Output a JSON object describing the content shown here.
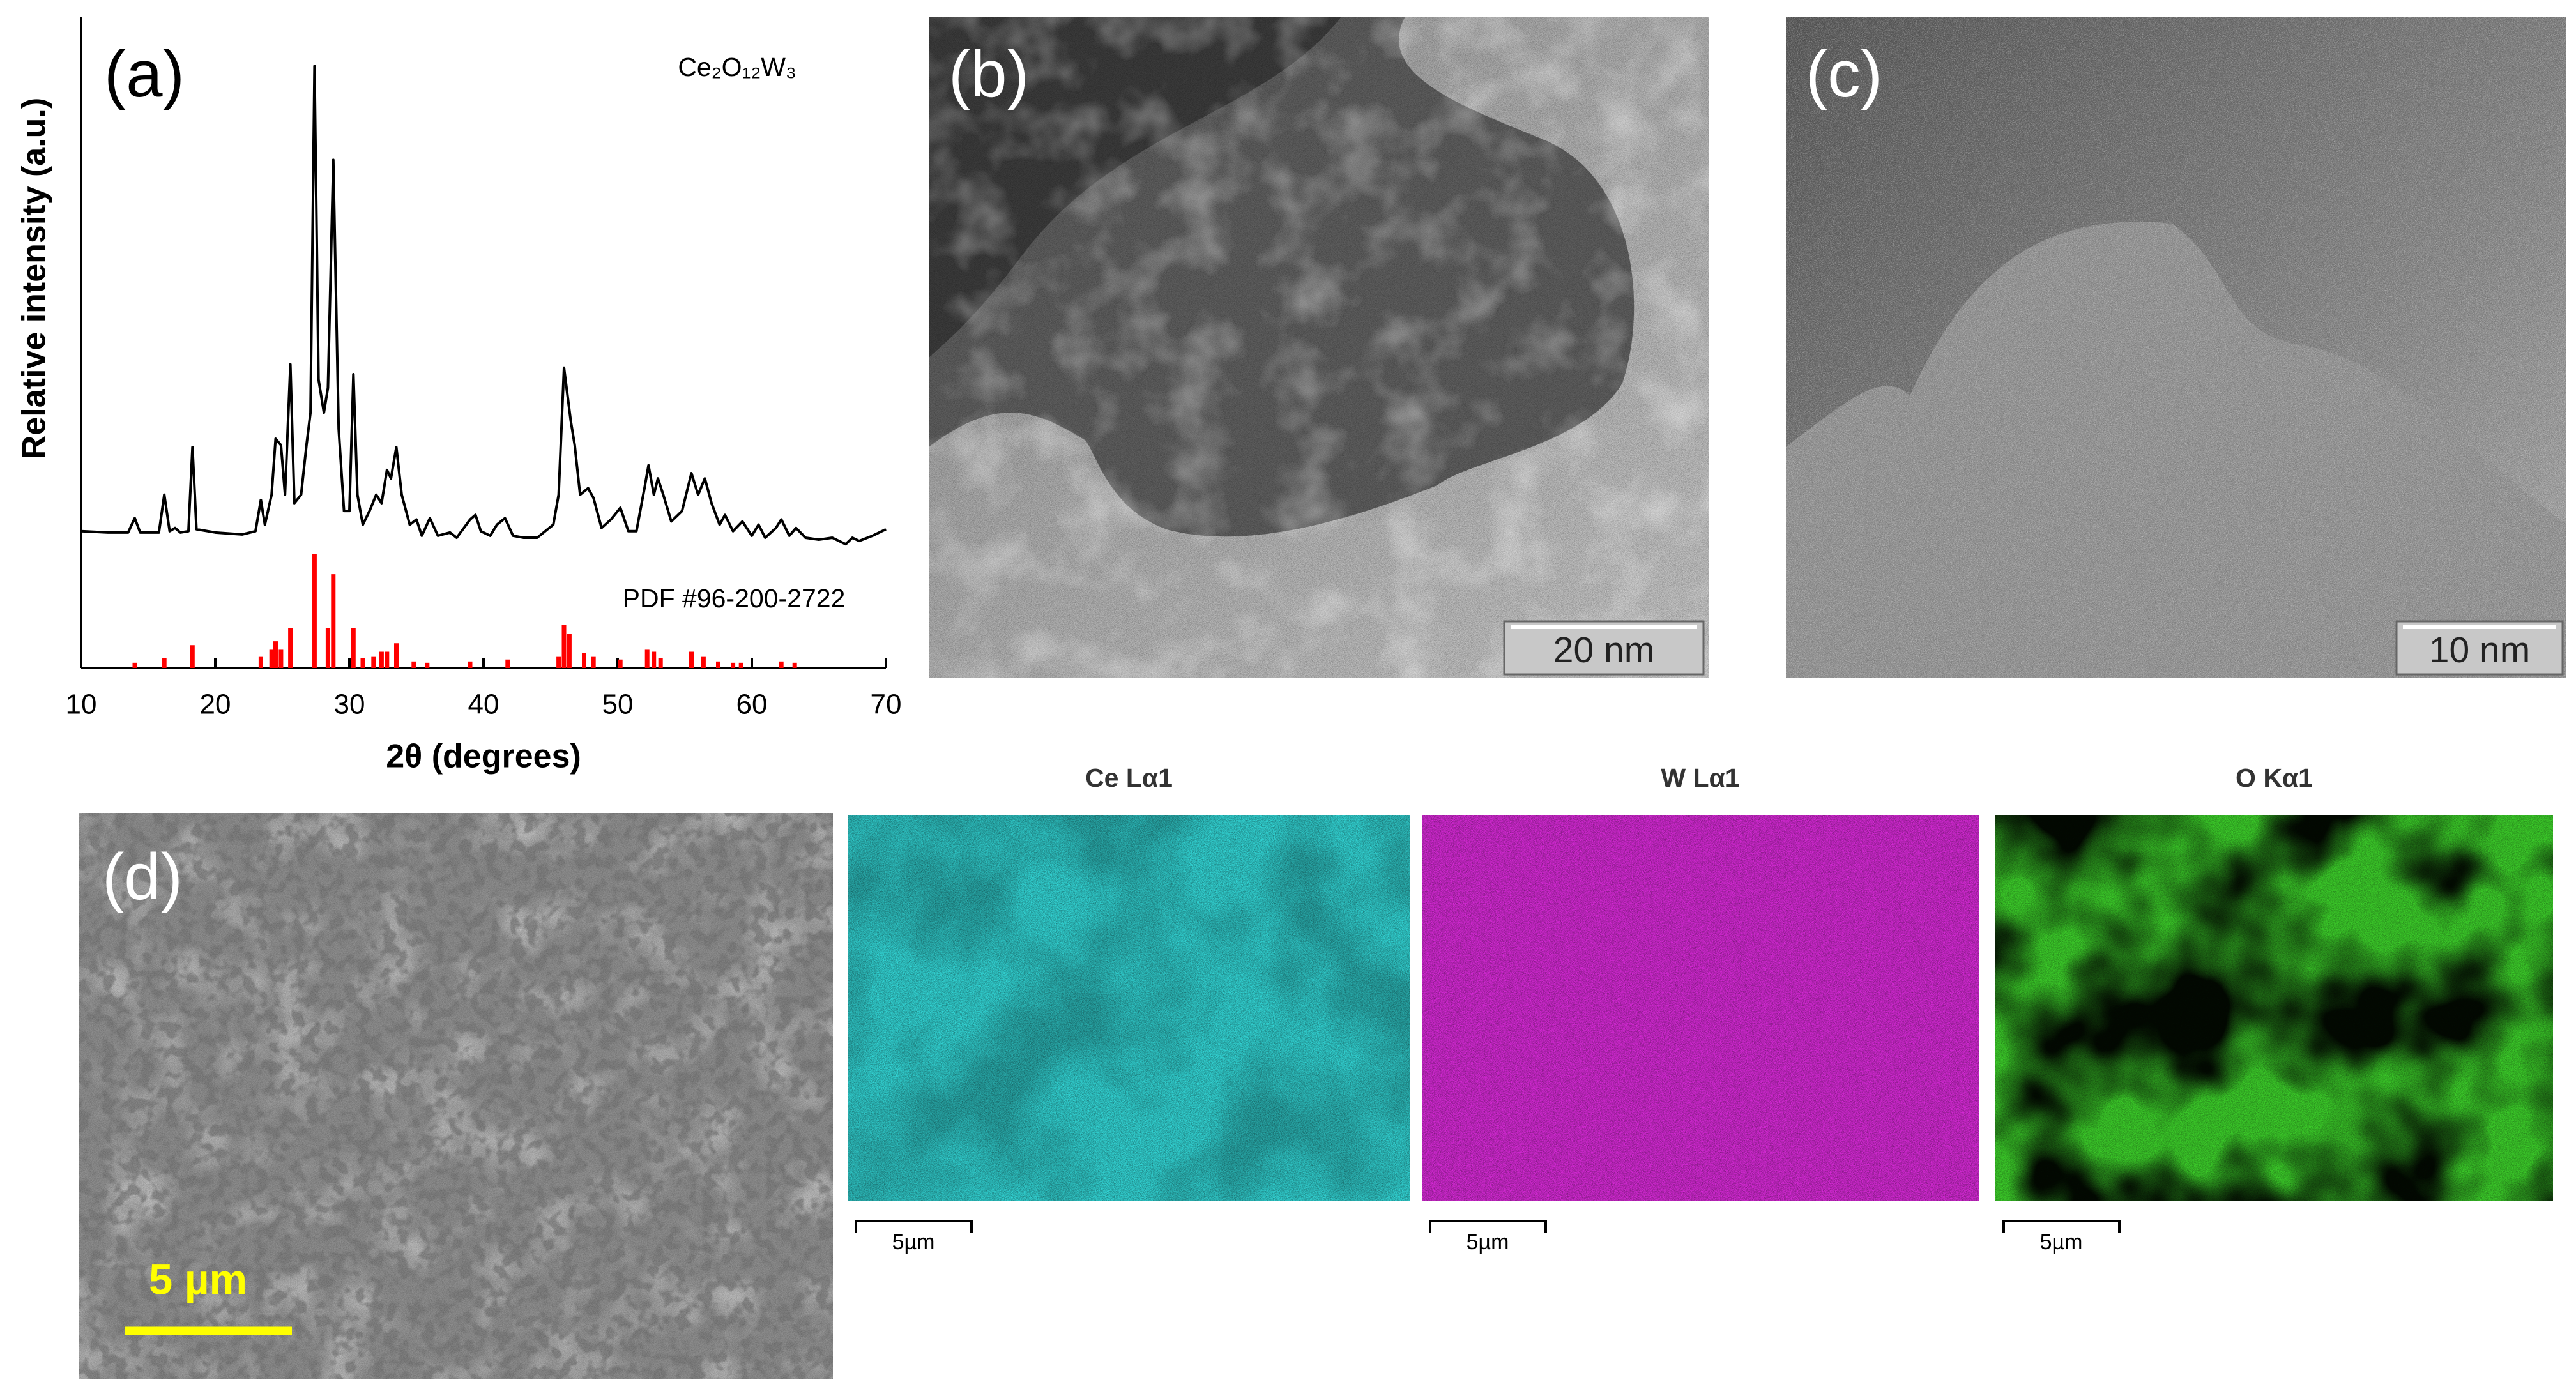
{
  "chart_data": {
    "type": "line",
    "panel_label": "(a)",
    "xlabel": "2θ (degrees)",
    "ylabel": "Relative intensity (a.u.)",
    "xlim": [
      10,
      70
    ],
    "xticks": [
      10,
      20,
      30,
      40,
      50,
      60,
      70
    ],
    "ylim": [
      0,
      100
    ],
    "series": [
      {
        "name": "Ce₂O₁₂W₃",
        "color": "#000000",
        "x": [
          10,
          12,
          13.5,
          14.0,
          14.4,
          15.8,
          16.2,
          16.6,
          17.0,
          17.4,
          18.0,
          18.3,
          18.6,
          20,
          22,
          23.0,
          23.4,
          23.7,
          24.2,
          24.5,
          24.9,
          25.2,
          25.6,
          25.9,
          26.4,
          26.8,
          27.1,
          27.4,
          27.7,
          28.1,
          28.4,
          28.8,
          29.2,
          29.6,
          30.0,
          30.3,
          30.6,
          31.0,
          31.5,
          32.0,
          32.4,
          32.8,
          33.1,
          33.5,
          33.9,
          34.5,
          35.0,
          35.4,
          36.0,
          36.6,
          37.5,
          38.0,
          39.0,
          39.4,
          39.8,
          40.5,
          41.0,
          41.6,
          42.2,
          43,
          44,
          45.2,
          45.6,
          46.0,
          46.5,
          46.8,
          47.2,
          47.8,
          48.2,
          48.8,
          49.5,
          50.2,
          50.8,
          51.4,
          52.0,
          52.3,
          52.7,
          53.0,
          53.4,
          54.0,
          54.8,
          55.5,
          56.0,
          56.5,
          57.0,
          57.6,
          58.0,
          58.6,
          59.3,
          60.0,
          60.5,
          61.0,
          61.8,
          62.2,
          62.8,
          63.3,
          64.0,
          65,
          66,
          67,
          67.5,
          68,
          69,
          70
        ],
        "values": [
          21.0,
          20.8,
          20.8,
          23.0,
          20.8,
          20.8,
          26.6,
          21.0,
          21.5,
          20.8,
          21.0,
          33.9,
          21.3,
          20.8,
          20.5,
          21.0,
          25.8,
          22.0,
          26.6,
          35.2,
          34.2,
          26.6,
          46.6,
          25.3,
          26.6,
          34.2,
          39.2,
          92.4,
          44.3,
          39.2,
          43.0,
          78.0,
          36.7,
          24.1,
          24.1,
          45.1,
          26.6,
          22.0,
          24.1,
          26.6,
          25.3,
          30.4,
          29.1,
          33.9,
          26.6,
          22.0,
          22.8,
          20.3,
          23.0,
          20.3,
          20.8,
          20.0,
          22.8,
          23.5,
          21.0,
          20.3,
          22.0,
          23.0,
          20.3,
          20.0,
          20.0,
          22.0,
          26.6,
          46.1,
          38.0,
          34.2,
          26.6,
          27.6,
          26.1,
          21.5,
          22.8,
          24.6,
          21.0,
          21.0,
          27.6,
          31.1,
          26.6,
          29.1,
          26.6,
          22.5,
          24.1,
          29.9,
          26.6,
          29.1,
          25.3,
          22.0,
          23.5,
          21.0,
          22.5,
          20.3,
          22.0,
          20.0,
          21.5,
          22.8,
          20.3,
          21.5,
          20.0,
          19.7,
          20.0,
          19.0,
          20.0,
          19.5,
          20.3,
          21.3
        ]
      },
      {
        "name": "PDF #96-200-2722",
        "type": "stem",
        "color": "#ff0000",
        "x": [
          14.0,
          16.2,
          18.3,
          23.4,
          24.2,
          24.5,
          24.9,
          25.6,
          27.4,
          28.4,
          28.8,
          30.3,
          31.0,
          31.8,
          32.4,
          32.8,
          33.5,
          34.8,
          35.8,
          39.0,
          41.8,
          45.6,
          46.0,
          46.4,
          47.5,
          48.2,
          50.2,
          52.2,
          52.7,
          53.2,
          55.5,
          56.4,
          57.5,
          58.6,
          59.2,
          62.2,
          63.2
        ],
        "values": [
          0.8,
          1.5,
          3.5,
          1.8,
          2.8,
          4.1,
          2.8,
          6.1,
          17.5,
          6.1,
          14.4,
          6.1,
          1.5,
          1.8,
          2.5,
          2.5,
          3.8,
          1.0,
          0.8,
          1.0,
          1.3,
          1.8,
          6.6,
          5.3,
          2.3,
          1.8,
          1.3,
          2.8,
          2.5,
          1.5,
          2.5,
          1.8,
          1.0,
          0.8,
          0.8,
          1.0,
          0.8
        ]
      }
    ]
  },
  "panels": {
    "b": {
      "label": "(b)",
      "scale_bar": "20 nm"
    },
    "c": {
      "label": "(c)",
      "scale_bar": "10 nm"
    },
    "d": {
      "label": "(d)",
      "scale_bar": "5 µm"
    },
    "maps": [
      {
        "title": "Ce Lα1",
        "scale_bar": "5µm"
      },
      {
        "title": "W Lα1",
        "scale_bar": "5µm"
      },
      {
        "title": "O Kα1",
        "scale_bar": "5µm"
      }
    ]
  }
}
